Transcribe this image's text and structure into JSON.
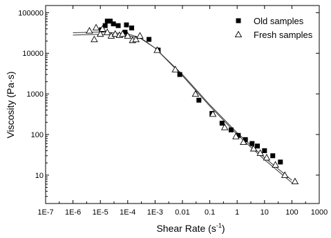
{
  "chart_data": {
    "type": "scatter",
    "xlabel": "Shear Rate (s",
    "xlabel_superscript": "-1",
    "xlabel_suffix": ")",
    "ylabel": "Viscosity (Pa·s)",
    "x_scale": "log",
    "y_scale": "log",
    "xlim": [
      1e-07,
      1000
    ],
    "ylim": [
      2,
      150000
    ],
    "x_ticks": [
      1e-07,
      1e-06,
      1e-05,
      0.0001,
      0.001,
      0.01,
      0.1,
      1,
      10,
      100,
      1000
    ],
    "x_tick_labels": [
      "1E-7",
      "1E-6",
      "1E-5",
      "1E-4",
      "1E-3",
      "0.01",
      "0.1",
      "1",
      "10",
      "100",
      "1000"
    ],
    "y_ticks": [
      10,
      100,
      1000,
      10000,
      100000
    ],
    "y_tick_labels": [
      "10",
      "100",
      "1000",
      "10000",
      "100000"
    ],
    "grid": false,
    "legend_position": "top-right",
    "series": [
      {
        "name": "Old samples",
        "marker": "filled-square",
        "color": "#000000",
        "points": [
          [
            1.1e-05,
            38000
          ],
          [
            1.5e-05,
            48000
          ],
          [
            1.8e-05,
            62000
          ],
          [
            2.3e-05,
            62000
          ],
          [
            3e-05,
            53000
          ],
          [
            4.5e-05,
            48000
          ],
          [
            8e-05,
            33000
          ],
          [
            9e-05,
            50000
          ],
          [
            0.00014,
            42000
          ],
          [
            0.0006,
            22000
          ],
          [
            0.0013,
            12000
          ],
          [
            0.008,
            3000
          ],
          [
            0.04,
            700
          ],
          [
            0.12,
            330
          ],
          [
            0.28,
            190
          ],
          [
            0.6,
            130
          ],
          [
            1.1,
            95
          ],
          [
            2.0,
            75
          ],
          [
            3.5,
            60
          ],
          [
            5.5,
            52
          ],
          [
            10,
            40
          ],
          [
            20,
            30
          ],
          [
            38,
            21
          ]
        ]
      },
      {
        "name": "Fresh samples",
        "marker": "open-triangle",
        "color": "#000000",
        "points": [
          [
            4e-06,
            36000
          ],
          [
            6e-06,
            22000
          ],
          [
            7e-06,
            43000
          ],
          [
            1e-05,
            30000
          ],
          [
            1.2e-05,
            40000
          ],
          [
            1.8e-05,
            33000
          ],
          [
            2.5e-05,
            27000
          ],
          [
            3.5e-05,
            30000
          ],
          [
            5e-05,
            28000
          ],
          [
            6.5e-05,
            30000
          ],
          [
            0.0001,
            27000
          ],
          [
            0.00015,
            21000
          ],
          [
            0.0002,
            22000
          ],
          [
            0.00028,
            27000
          ],
          [
            0.0012,
            12000
          ],
          [
            0.0055,
            4000
          ],
          [
            0.03,
            1000
          ],
          [
            0.13,
            320
          ],
          [
            0.35,
            150
          ],
          [
            0.9,
            90
          ],
          [
            1.7,
            65
          ],
          [
            4.0,
            45
          ],
          [
            7.0,
            35
          ],
          [
            12,
            27
          ],
          [
            25,
            18
          ],
          [
            55,
            10
          ],
          [
            130,
            7
          ]
        ]
      }
    ],
    "fit_lines": [
      {
        "for_series": "Old samples",
        "points": [
          [
            1e-06,
            32000
          ],
          [
            1e-05,
            33500
          ],
          [
            0.0001,
            30000
          ],
          [
            0.0003,
            24000
          ],
          [
            0.001,
            13500
          ],
          [
            0.01,
            2800
          ],
          [
            0.1,
            500
          ],
          [
            1,
            100
          ],
          [
            10,
            24
          ],
          [
            100,
            6.5
          ]
        ]
      },
      {
        "for_series": "Fresh samples",
        "points": [
          [
            1e-06,
            28000
          ],
          [
            1e-05,
            29500
          ],
          [
            0.0001,
            27500
          ],
          [
            0.0003,
            23000
          ],
          [
            0.001,
            13500
          ],
          [
            0.01,
            3000
          ],
          [
            0.1,
            540
          ],
          [
            1,
            110
          ],
          [
            10,
            27
          ],
          [
            100,
            7.5
          ]
        ]
      }
    ]
  }
}
